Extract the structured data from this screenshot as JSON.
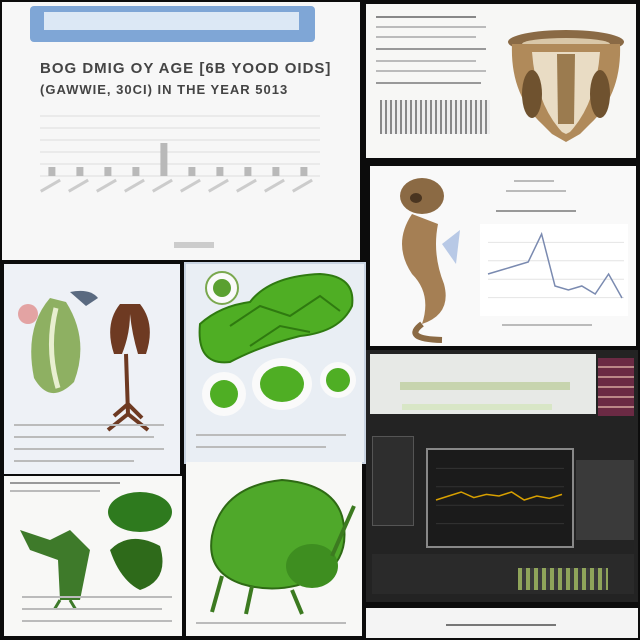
{
  "top_left_panel": {
    "title_line1": "BOG DMIG OY AGE [6B YOOD OIDS]",
    "title_line2": "(GAWWIE, 30CI) IN THE YEAR 5013",
    "bar_chart": {
      "type": "bar",
      "values": [
        0.15,
        0.15,
        0.15,
        0.15,
        0.55,
        0.15,
        0.15,
        0.15,
        0.15,
        0.15
      ]
    },
    "colors": {
      "accent": "#9fc0de"
    }
  },
  "top_right_panel": {
    "illustration": "dinosaur-skull-icon"
  },
  "mid_right_panel": {
    "illustration": "seahorse-creature-icon",
    "line_chart": {
      "type": "line",
      "values": [
        0.45,
        0.5,
        0.55,
        0.6,
        0.95,
        0.3,
        0.25,
        0.3,
        0.2,
        0.45,
        0.15
      ]
    }
  },
  "mid_left_panel": {
    "illustrations": [
      "plant-specimen-icon",
      "root-specimen-icon"
    ]
  },
  "center_panel": {
    "illustrations": [
      "green-cell-tissue-icon",
      "cell-cluster-icon"
    ]
  },
  "bottom_left_panel": {
    "illustration": "green-plant-specimen-icon"
  },
  "bottom_center_panel": {
    "illustration": "green-beetle-icon"
  },
  "bottom_right_panel": {
    "chart_line": {
      "type": "line",
      "values": [
        0.45,
        0.5,
        0.55,
        0.48,
        0.52,
        0.5,
        0.55,
        0.45,
        0.5,
        0.47,
        0.52
      ]
    },
    "colors": {
      "screen": "#1b1b1b",
      "line": "#d8a000"
    }
  }
}
